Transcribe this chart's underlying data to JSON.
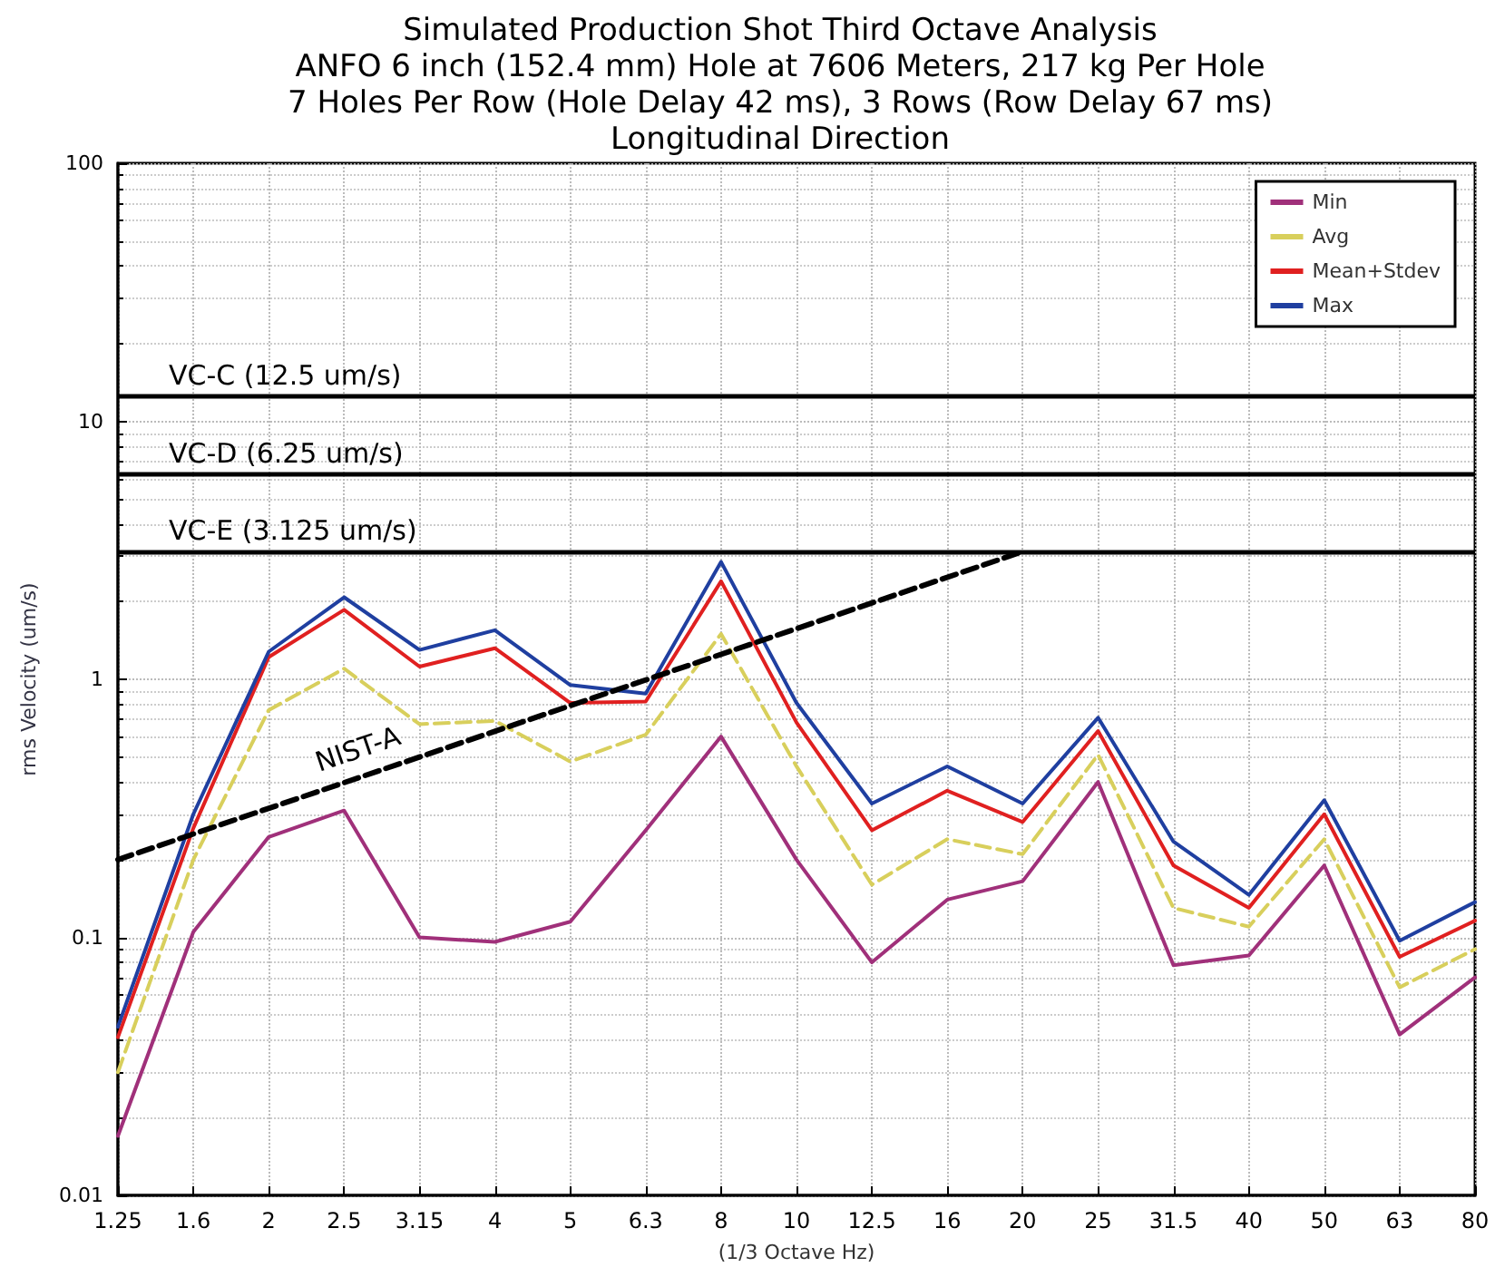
{
  "chart_data": {
    "type": "line",
    "title": "Simulated Production Shot Third Octave Analysis",
    "subtitle": "ANFO 6 inch (152.4 mm) Hole at 7606 Meters, 217 kg Per Hole\n7 Holes Per Row (Hole Delay 42 ms), 3 Rows (Row Delay 67 ms)\nLongitudinal Direction",
    "xlabel": "(1/3 Octave Hz)",
    "ylabel": "rms Velocity (um/s)",
    "categories": [
      "1.25",
      "1.6",
      "2",
      "2.5",
      "3.15",
      "4",
      "5",
      "6.3",
      "8",
      "10",
      "12.5",
      "16",
      "20",
      "25",
      "31.5",
      "40",
      "50",
      "63",
      "80"
    ],
    "series": [
      {
        "name": "Min",
        "color": "#a0307a",
        "values": [
          0.017,
          0.105,
          0.245,
          0.31,
          0.1,
          0.096,
          0.115,
          0.26,
          0.6,
          0.2,
          0.08,
          0.14,
          0.165,
          0.4,
          0.078,
          0.085,
          0.19,
          0.042,
          0.07
        ]
      },
      {
        "name": "Avg",
        "color": "#d8cf5c",
        "line_style": "dashed",
        "values": [
          0.03,
          0.2,
          0.76,
          1.1,
          0.67,
          0.69,
          0.48,
          0.61,
          1.5,
          0.46,
          0.16,
          0.24,
          0.21,
          0.51,
          0.13,
          0.11,
          0.24,
          0.064,
          0.09
        ]
      },
      {
        "name": "Mean+Stdev",
        "color": "#e02020",
        "values": [
          0.041,
          0.265,
          1.22,
          1.86,
          1.12,
          1.32,
          0.81,
          0.82,
          2.4,
          0.68,
          0.26,
          0.37,
          0.28,
          0.63,
          0.19,
          0.13,
          0.3,
          0.084,
          0.116
        ]
      },
      {
        "name": "Max",
        "color": "#1f3fa0",
        "values": [
          0.045,
          0.3,
          1.28,
          2.08,
          1.3,
          1.55,
          0.95,
          0.88,
          2.85,
          0.81,
          0.33,
          0.46,
          0.33,
          0.71,
          0.235,
          0.146,
          0.34,
          0.097,
          0.137
        ]
      },
      {
        "name": "NIST-A",
        "color": "#000000",
        "line_style": "dashed",
        "x": [
          "1.25",
          "20"
        ],
        "values": [
          0.2,
          3.125
        ]
      }
    ],
    "ref_lines": [
      {
        "axis": "y",
        "value": 12.5,
        "label": "VC-C (12.5 um/s)",
        "color": "#000000"
      },
      {
        "axis": "y",
        "value": 6.25,
        "label": "VC-D (6.25 um/s)",
        "color": "#000000"
      },
      {
        "axis": "y",
        "value": 3.125,
        "label": "VC-E (3.125 um/s)",
        "color": "#000000"
      }
    ],
    "log": "y",
    "ylim": [
      0.01,
      100
    ],
    "yticks": [
      0.01,
      0.1,
      1,
      10,
      100
    ],
    "grid": true,
    "legend": "top right",
    "marker": "none"
  }
}
